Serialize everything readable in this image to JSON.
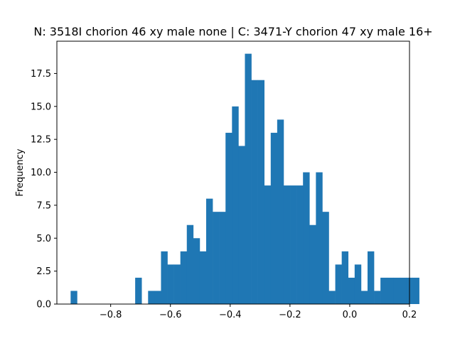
{
  "chart_data": {
    "type": "bar",
    "title": "N: 3518I chorion 46 xy male none | C: 3471-Y chorion 47 xy male 16+",
    "xlabel": "",
    "ylabel": "Frequency",
    "bar_color": "#1f77b4",
    "xlim": [
      -0.98,
      0.2
    ],
    "ylim": [
      0,
      19.95
    ],
    "xticks": [
      -0.8,
      -0.6,
      -0.4,
      -0.2,
      0.0,
      0.2
    ],
    "xtick_labels": [
      "−0.8",
      "−0.6",
      "−0.4",
      "−0.2",
      "0.0",
      "0.2"
    ],
    "yticks": [
      0.0,
      2.5,
      5.0,
      7.5,
      10.0,
      12.5,
      15.0,
      17.5
    ],
    "ytick_labels": [
      "0.0",
      "2.5",
      "5.0",
      "7.5",
      "10.0",
      "12.5",
      "15.0",
      "17.5"
    ],
    "bin_start": -0.934,
    "bin_width": 0.0216,
    "values": [
      1,
      0,
      0,
      0,
      0,
      0,
      0,
      0,
      0,
      0,
      2,
      0,
      1,
      1,
      4,
      3,
      3,
      4,
      6,
      5,
      4,
      8,
      7,
      7,
      13,
      15,
      12,
      19,
      17,
      17,
      9,
      13,
      14,
      9,
      9,
      9,
      10,
      6,
      10,
      7,
      1,
      3,
      4,
      2,
      3,
      1,
      4,
      1,
      2,
      2,
      2,
      2,
      2,
      2
    ]
  }
}
